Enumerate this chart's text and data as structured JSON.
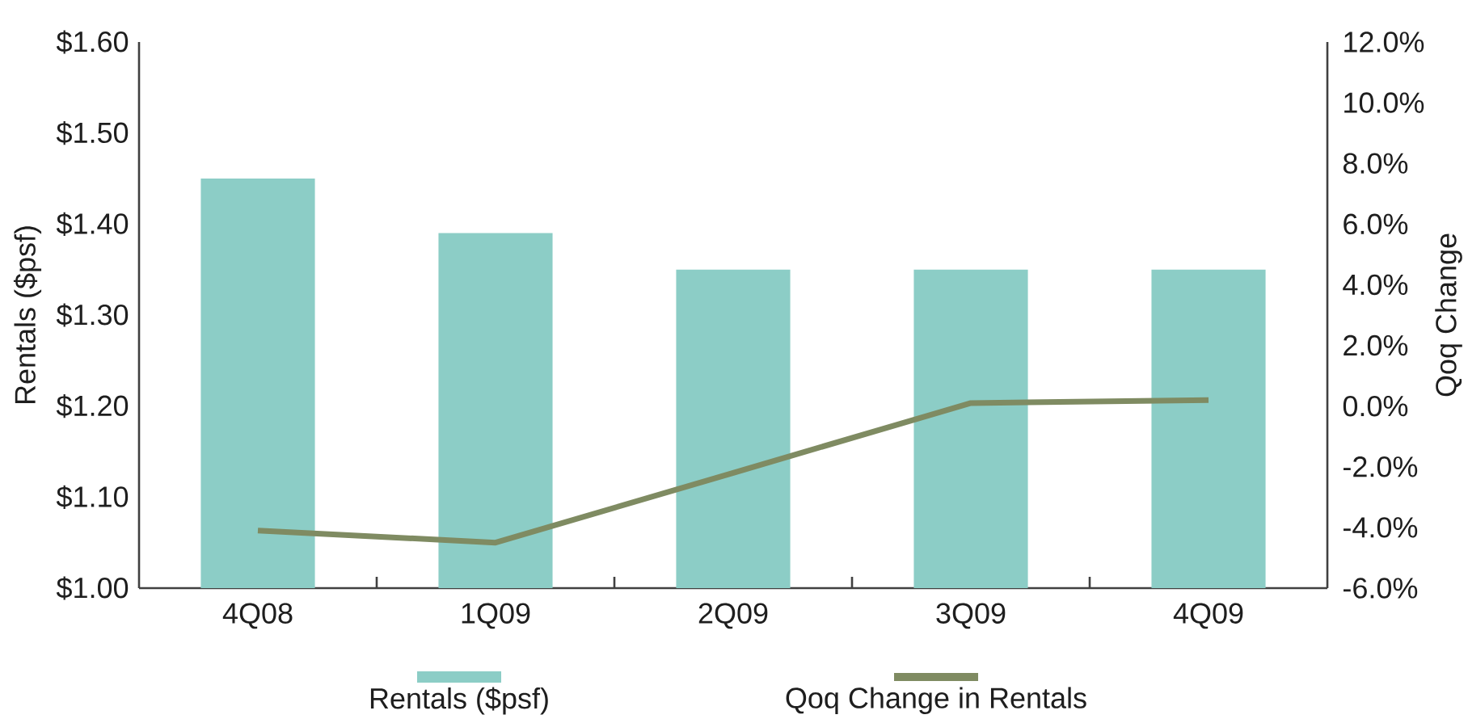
{
  "chart_data": {
    "type": "bar",
    "categories": [
      "4Q08",
      "1Q09",
      "2Q09",
      "3Q09",
      "4Q09"
    ],
    "ylabel": "Rentals ($psf)",
    "y2label": "Qoq Change",
    "ylim": [
      1.0,
      1.6
    ],
    "yticks": [
      {
        "value": 1.0,
        "label": "$1.00"
      },
      {
        "value": 1.1,
        "label": "$1.10"
      },
      {
        "value": 1.2,
        "label": "$1.20"
      },
      {
        "value": 1.3,
        "label": "$1.30"
      },
      {
        "value": 1.4,
        "label": "$1.40"
      },
      {
        "value": 1.5,
        "label": "$1.50"
      },
      {
        "value": 1.6,
        "label": "$1.60"
      }
    ],
    "y2lim": [
      -6,
      12
    ],
    "y2ticks": [
      {
        "value": -6,
        "label": "-6.0%"
      },
      {
        "value": -4,
        "label": "-4.0%"
      },
      {
        "value": -2,
        "label": "-2.0%"
      },
      {
        "value": 0,
        "label": "0.0%"
      },
      {
        "value": 2,
        "label": "2.0%"
      },
      {
        "value": 4,
        "label": "4.0%"
      },
      {
        "value": 6,
        "label": "6.0%"
      },
      {
        "value": 8,
        "label": "8.0%"
      },
      {
        "value": 10,
        "label": "10.0%"
      },
      {
        "value": 12,
        "label": "12.0%"
      }
    ],
    "series": [
      {
        "name": "Rentals ($psf)",
        "color": "#8ccdc6",
        "values": [
          1.45,
          1.39,
          1.35,
          1.35,
          1.35
        ]
      },
      {
        "name": "Qoq Change in Rentals",
        "type": "line",
        "axis": "y2",
        "color": "#7f8b62",
        "values": [
          -4.1,
          -4.5,
          -2.2,
          0.1,
          0.2
        ]
      }
    ],
    "legend": "bottom"
  }
}
